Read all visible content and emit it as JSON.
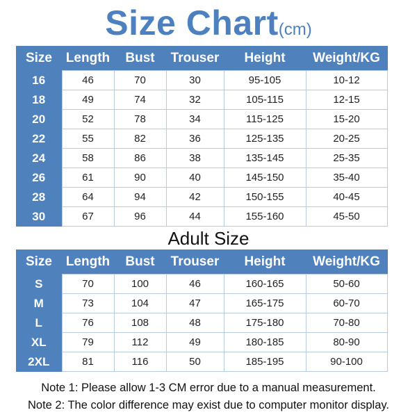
{
  "title": "Size Chart",
  "title_unit": "(cm)",
  "columns": [
    "Size",
    "Length",
    "Bust",
    "Trouser",
    "Height",
    "Weight/KG"
  ],
  "kids_rows": [
    [
      "16",
      "46",
      "70",
      "30",
      "95-105",
      "10-12"
    ],
    [
      "18",
      "49",
      "74",
      "32",
      "105-115",
      "12-15"
    ],
    [
      "20",
      "52",
      "78",
      "34",
      "115-125",
      "15-20"
    ],
    [
      "22",
      "55",
      "82",
      "36",
      "125-135",
      "20-25"
    ],
    [
      "24",
      "58",
      "86",
      "38",
      "135-145",
      "25-35"
    ],
    [
      "26",
      "61",
      "90",
      "40",
      "145-150",
      "35-40"
    ],
    [
      "28",
      "64",
      "94",
      "42",
      "150-155",
      "40-45"
    ],
    [
      "30",
      "67",
      "96",
      "44",
      "155-160",
      "45-50"
    ]
  ],
  "adult_title": "Adult Size",
  "adult_rows": [
    [
      "S",
      "70",
      "100",
      "46",
      "160-165",
      "50-60"
    ],
    [
      "M",
      "73",
      "104",
      "47",
      "165-175",
      "60-70"
    ],
    [
      "L",
      "76",
      "108",
      "48",
      "175-180",
      "70-80"
    ],
    [
      "XL",
      "79",
      "112",
      "49",
      "180-185",
      "80-90"
    ],
    [
      "2XL",
      "81",
      "116",
      "50",
      "185-195",
      "90-100"
    ]
  ],
  "notes": [
    "Note 1: Please allow 1-3 CM error due to a manual measurement.",
    "Note 2: The color difference may exist due to computer monitor display."
  ],
  "colors": {
    "accent": "#4f81bd",
    "grid": "#b9cbe2"
  }
}
